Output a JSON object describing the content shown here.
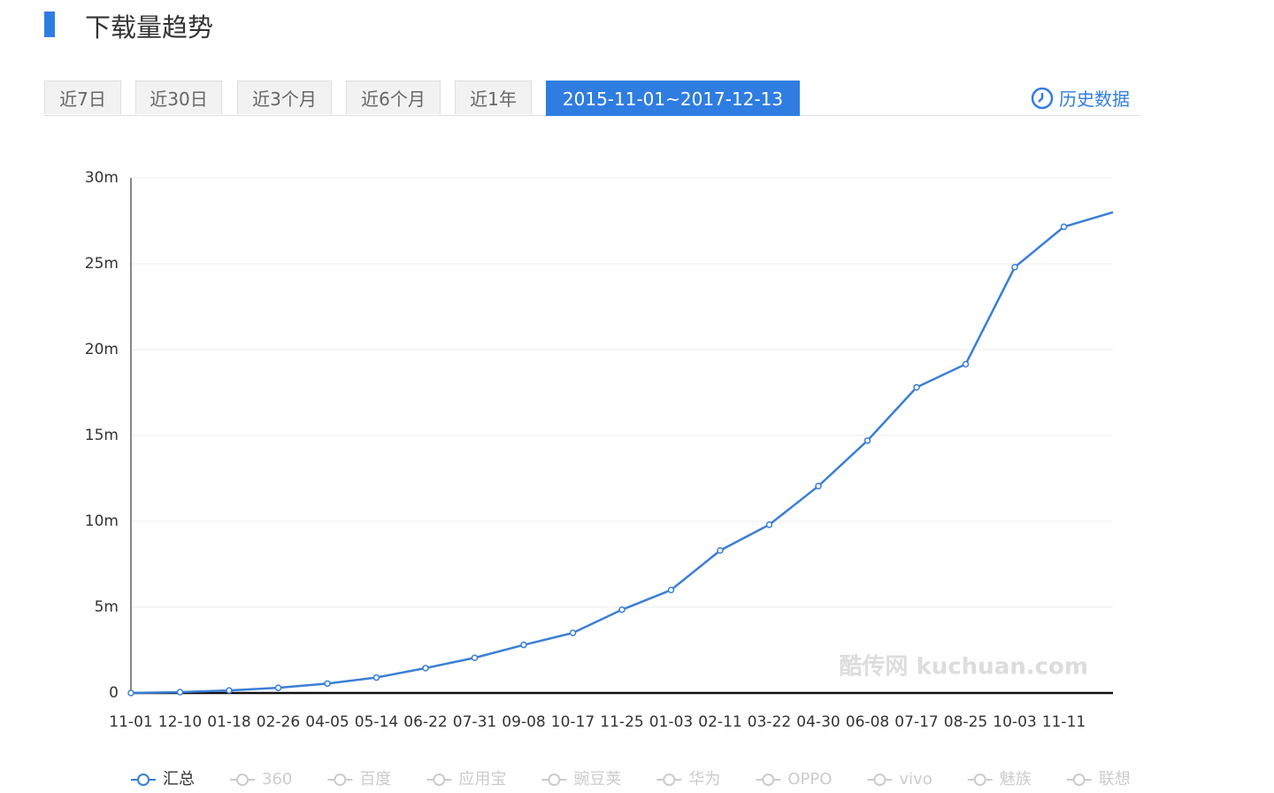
{
  "header": {
    "title": "下载量趋势",
    "tabs": [
      "近7日",
      "近30日",
      "近3个月",
      "近6个月",
      "近1年",
      "2015-11-01~2017-12-13"
    ],
    "history_link": "历史数据"
  },
  "chart_data": {
    "type": "line",
    "categories": [
      "11-01",
      "12-10",
      "01-18",
      "02-26",
      "04-05",
      "05-14",
      "06-22",
      "07-31",
      "09-08",
      "10-17",
      "11-25",
      "01-03",
      "02-11",
      "03-22",
      "04-30",
      "06-08",
      "07-17",
      "08-25",
      "10-03",
      "11-11",
      null
    ],
    "series": [
      {
        "name": "汇总",
        "color": "#3a7fd5",
        "values": [
          0,
          0.05,
          0.15,
          0.3,
          0.55,
          0.9,
          1.45,
          2.05,
          2.8,
          3.5,
          4.85,
          6.0,
          8.3,
          9.8,
          12.05,
          14.7,
          17.8,
          19.15,
          24.8,
          27.15,
          28.0
        ]
      }
    ],
    "inactive_legend": [
      "360",
      "百度",
      "应用宝",
      "豌豆荚",
      "华为",
      "OPPO",
      "vivo",
      "魅族",
      "联想"
    ],
    "ylim": [
      0,
      30
    ],
    "yticks": [
      0,
      {
        "value": 5,
        "label": "5m"
      },
      {
        "value": 10,
        "label": "10m"
      },
      {
        "value": 15,
        "label": "15m"
      },
      {
        "value": 20,
        "label": "20m"
      },
      {
        "value": 25,
        "label": "25m"
      },
      {
        "value": 30,
        "label": "30m"
      }
    ],
    "grid": true,
    "watermark": "酷传网 kuchuan.com"
  }
}
